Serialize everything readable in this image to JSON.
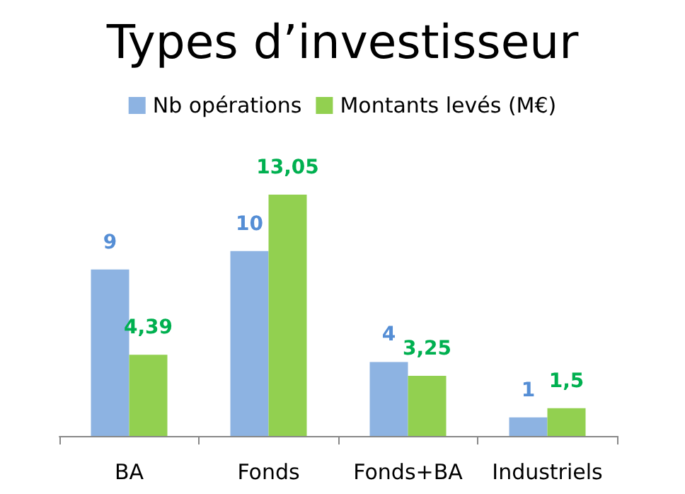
{
  "chart_data": {
    "type": "bar",
    "title": "Types d’investisseur",
    "categories": [
      "BA",
      "Fonds",
      "Fonds+BA",
      "Industriels"
    ],
    "series": [
      {
        "name": "Nb opérations",
        "color": "#8db3e2",
        "values": [
          9,
          10,
          4,
          1
        ],
        "value_labels": [
          "9",
          "10",
          "4",
          "1"
        ]
      },
      {
        "name": "Montants levés (M€)",
        "color": "#92d050",
        "values": [
          4.39,
          13.05,
          3.25,
          1.5
        ],
        "value_labels": [
          "4,39",
          "13,05",
          "3,25",
          "1,5"
        ]
      }
    ],
    "legend": "top"
  }
}
